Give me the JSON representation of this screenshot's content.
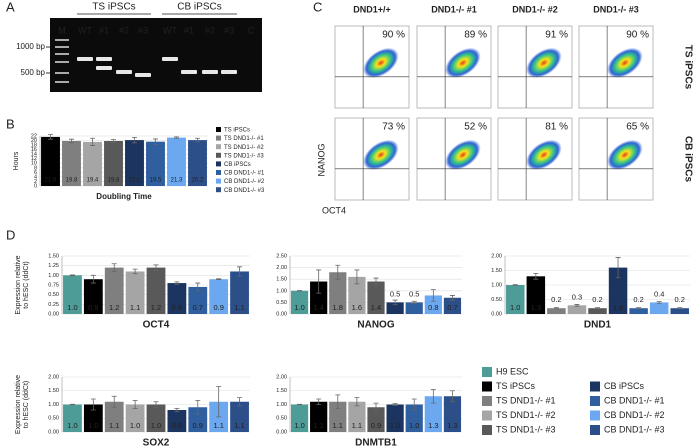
{
  "panel_labels": [
    "A",
    "B",
    "C",
    "D"
  ],
  "gel": {
    "groups": [
      "TS iPSCs",
      "CB iPSCs"
    ],
    "lanes": [
      "M",
      "WT",
      "#1",
      "#2",
      "#3",
      "WT",
      "#1",
      "#2",
      "#3",
      "C"
    ],
    "markers": [
      "1000 bp",
      "500 bp"
    ]
  },
  "flow": {
    "columns": [
      "DND1+/+",
      "DND1-/- #1",
      "DND1-/- #2",
      "DND1-/- #3"
    ],
    "rows": [
      "TS iPSCs",
      "CB iPSCs"
    ],
    "y_label": "NANOG",
    "x_label": "OCT4",
    "percentages": [
      [
        "90 %",
        "89 %",
        "91 %",
        "90 %"
      ],
      [
        "73 %",
        "52 %",
        "81 %",
        "65 %"
      ]
    ]
  },
  "legend_d": {
    "names": [
      "H9 ESC",
      "TS iPSCs",
      "TS DND1-/- #1",
      "TS DND1-/- #2",
      "TS DND1-/- #3",
      "CB iPSCs",
      "CB DND1-/- #1",
      "CB DND1-/- #2",
      "CB DND1-/- #3"
    ]
  },
  "chart_data": [
    {
      "type": "bar",
      "title": "Doubling Time",
      "y_label": "Hours",
      "categories": [
        "TS iPSCs",
        "TS DND1-/- #1",
        "TS DND1-/- #2",
        "TS DND1-/- #3",
        "CB iPSCs",
        "CB DND1-/- #1",
        "CB DND1-/- #2",
        "CB DND1-/- #3"
      ],
      "values": [
        21.6,
        19.8,
        19.4,
        19.8,
        20.2,
        19.5,
        21.3,
        20.2
      ],
      "errors": [
        1.0,
        0.8,
        1.6,
        0.6,
        1.2,
        1.2,
        0.3,
        0.8
      ],
      "colors": [
        "#000000",
        "#7f7f7f",
        "#a5a5a5",
        "#595959",
        "#1c3560",
        "#2f5f9f",
        "#6ba8f0",
        "#2c4f8a"
      ],
      "ylim": [
        0,
        22
      ],
      "yticks": [
        0,
        2,
        4,
        6,
        8,
        10,
        12,
        14,
        16,
        18,
        20,
        22
      ],
      "grid": true
    },
    {
      "type": "bar",
      "title": "OCT4",
      "y_label_lines": [
        "Expression relative",
        "to hESC (ddCt)"
      ],
      "values": [
        1.0,
        0.9,
        1.2,
        1.1,
        1.2,
        0.8,
        0.7,
        0.9,
        1.1
      ],
      "value_labels": [
        "1.0",
        "0.9",
        "1.2",
        "1.1",
        "1.2",
        "0.8",
        "0.7",
        "0.9",
        "1.1"
      ],
      "errors": [
        0.01,
        0.1,
        0.1,
        0.06,
        0.07,
        0.03,
        0.1,
        0.01,
        0.12
      ],
      "colors": [
        "#4e9c97",
        "#000000",
        "#7f7f7f",
        "#a5a5a5",
        "#595959",
        "#1c3560",
        "#2f5f9f",
        "#6ba8f0",
        "#2c4f8a"
      ],
      "ylim": [
        0,
        1.5
      ],
      "yticks": [
        {
          "value": 0,
          "label": "0.00"
        },
        {
          "value": 0.25,
          "label": "0.25"
        },
        {
          "value": 0.5,
          "label": "0.50"
        },
        {
          "value": 0.75,
          "label": "0.75"
        },
        {
          "value": 1,
          "label": "1.00"
        },
        {
          "value": 1.25,
          "label": "1.25"
        },
        {
          "value": 1.5,
          "label": "1.50"
        }
      ],
      "grid": true
    },
    {
      "type": "bar",
      "title": "NANOG",
      "values": [
        1.0,
        1.4,
        1.8,
        1.6,
        1.4,
        0.5,
        0.5,
        0.8,
        0.7
      ],
      "value_labels": [
        "1.0",
        "1.4",
        "1.8",
        "1.6",
        "1.4",
        "0.5",
        "0.5",
        "0.8",
        "0.7"
      ],
      "errors": [
        0.01,
        0.5,
        0.3,
        0.3,
        0.15,
        0.1,
        0.05,
        0.25,
        0.1
      ],
      "colors": [
        "#4e9c97",
        "#000000",
        "#7f7f7f",
        "#a5a5a5",
        "#595959",
        "#1c3560",
        "#2f5f9f",
        "#6ba8f0",
        "#2c4f8a"
      ],
      "ylim": [
        0,
        2.5
      ],
      "yticks": [
        {
          "value": 0,
          "label": "0.00"
        },
        {
          "value": 0.5,
          "label": "0.50"
        },
        {
          "value": 1,
          "label": "1.00"
        },
        {
          "value": 1.5,
          "label": "1.50"
        },
        {
          "value": 2,
          "label": "2.00"
        },
        {
          "value": 2.5,
          "label": "2.50"
        }
      ],
      "grid": true
    },
    {
      "type": "bar",
      "title": "DND1",
      "values": [
        1.0,
        1.3,
        0.2,
        0.3,
        0.2,
        1.6,
        0.2,
        0.4,
        0.2
      ],
      "value_labels": [
        "1.0",
        "1.3",
        "0.2",
        "0.3",
        "0.2",
        "1.6",
        "0.2",
        "0.4",
        "0.2"
      ],
      "errors": [
        0.01,
        0.1,
        0.02,
        0.03,
        0.02,
        0.35,
        0.02,
        0.03,
        0.02
      ],
      "colors": [
        "#4e9c97",
        "#000000",
        "#7f7f7f",
        "#a5a5a5",
        "#595959",
        "#1c3560",
        "#2f5f9f",
        "#6ba8f0",
        "#2c4f8a"
      ],
      "ylim": [
        0,
        2
      ],
      "yticks": [
        {
          "value": 0,
          "label": "0.00"
        },
        {
          "value": 0.5,
          "label": "0.50"
        },
        {
          "value": 1,
          "label": "1.00"
        },
        {
          "value": 1.5,
          "label": "1.50"
        },
        {
          "value": 2,
          "label": "2.00"
        }
      ],
      "grid": true
    },
    {
      "type": "bar",
      "title": "SOX2",
      "y_label_lines": [
        "Expression relative",
        "to hESC (ddCt)"
      ],
      "values": [
        1.0,
        1.0,
        1.1,
        1.0,
        1.0,
        0.8,
        0.9,
        1.1,
        1.1
      ],
      "value_labels": [
        "1.0",
        "1.0",
        "1.1",
        "1.0",
        "1.0",
        "0.8",
        "0.9",
        "1.1",
        "1.1"
      ],
      "errors": [
        0.01,
        0.2,
        0.2,
        0.15,
        0.1,
        0.06,
        0.25,
        0.55,
        0.15
      ],
      "colors": [
        "#4e9c97",
        "#000000",
        "#7f7f7f",
        "#a5a5a5",
        "#595959",
        "#1c3560",
        "#2f5f9f",
        "#6ba8f0",
        "#2c4f8a"
      ],
      "ylim": [
        0,
        2
      ],
      "yticks": [
        {
          "value": 0,
          "label": "0.00"
        },
        {
          "value": 0.5,
          "label": "0.50"
        },
        {
          "value": 1,
          "label": "1.00"
        },
        {
          "value": 1.5,
          "label": "1.50"
        },
        {
          "value": 2,
          "label": "2.00"
        }
      ],
      "grid": true
    },
    {
      "type": "bar",
      "title": "DNMTB1",
      "values": [
        1.0,
        1.1,
        1.1,
        1.1,
        0.9,
        1.0,
        1.0,
        1.3,
        1.3
      ],
      "value_labels": [
        "1.0",
        "1.1",
        "1.1",
        "1.1",
        "0.9",
        "1.0",
        "1.0",
        "1.3",
        "1.3"
      ],
      "errors": [
        0.01,
        0.1,
        0.25,
        0.15,
        0.15,
        0.03,
        0.2,
        0.25,
        0.2
      ],
      "colors": [
        "#4e9c97",
        "#000000",
        "#7f7f7f",
        "#a5a5a5",
        "#595959",
        "#1c3560",
        "#2f5f9f",
        "#6ba8f0",
        "#2c4f8a"
      ],
      "ylim": [
        0,
        2
      ],
      "yticks": [
        {
          "value": 0,
          "label": "0.00"
        },
        {
          "value": 0.5,
          "label": "0.50"
        },
        {
          "value": 1,
          "label": "1.00"
        },
        {
          "value": 1.5,
          "label": "1.50"
        },
        {
          "value": 2,
          "label": "2.00"
        }
      ],
      "grid": true
    }
  ]
}
